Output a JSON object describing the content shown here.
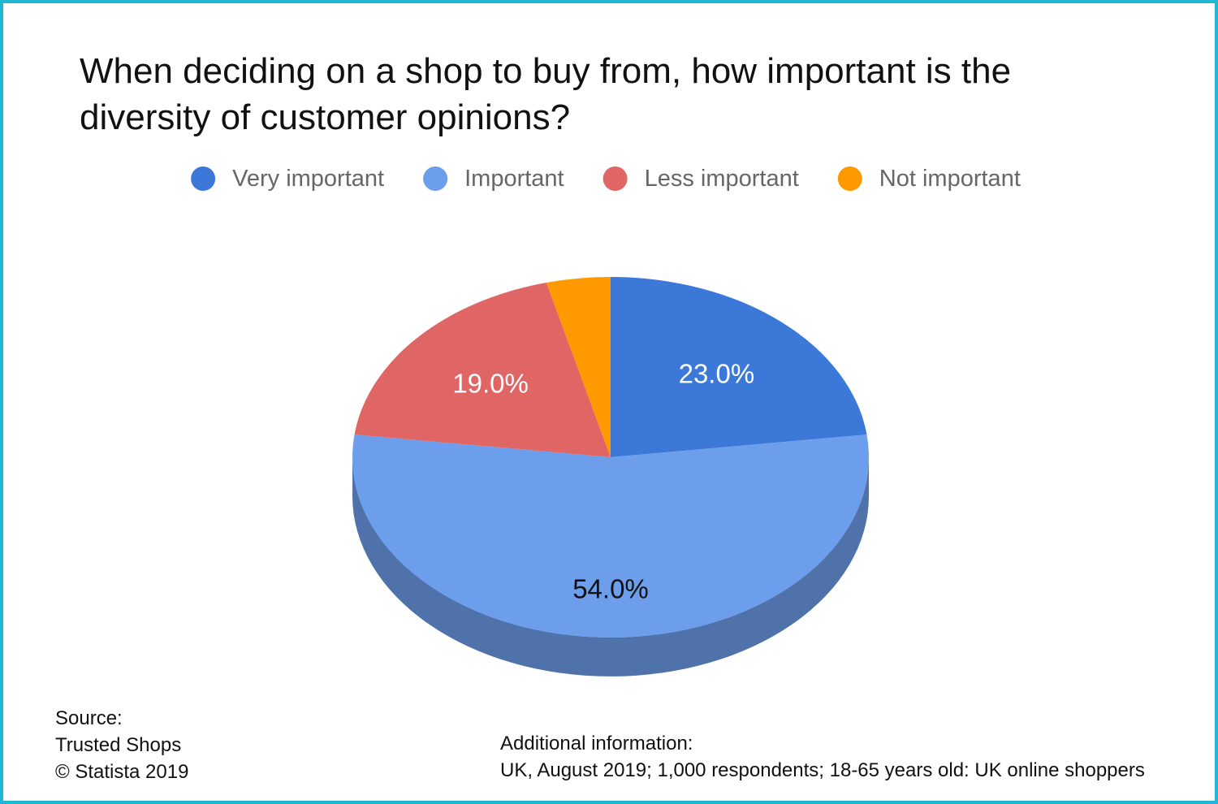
{
  "chart_data": {
    "type": "pie",
    "title": "When deciding on a shop to buy from, how important is the diversity of customer opinions?",
    "categories": [
      "Very important",
      "Important",
      "Less important",
      "Not important"
    ],
    "values": [
      23,
      54,
      19,
      4
    ],
    "value_labels": [
      "23.0%",
      "54.0%",
      "19.0%",
      null
    ],
    "colors": [
      "#3c78d8",
      "#6d9eeb",
      "#e06666",
      "#ff9900"
    ],
    "legend": "top",
    "three_d": true,
    "source": [
      "Source:",
      "Trusted Shops",
      "© Statista 2019"
    ],
    "additional_information": [
      "Additional information:",
      "UK, August 2019; 1,000 respondents; 18-65 years old: UK online shoppers"
    ]
  }
}
